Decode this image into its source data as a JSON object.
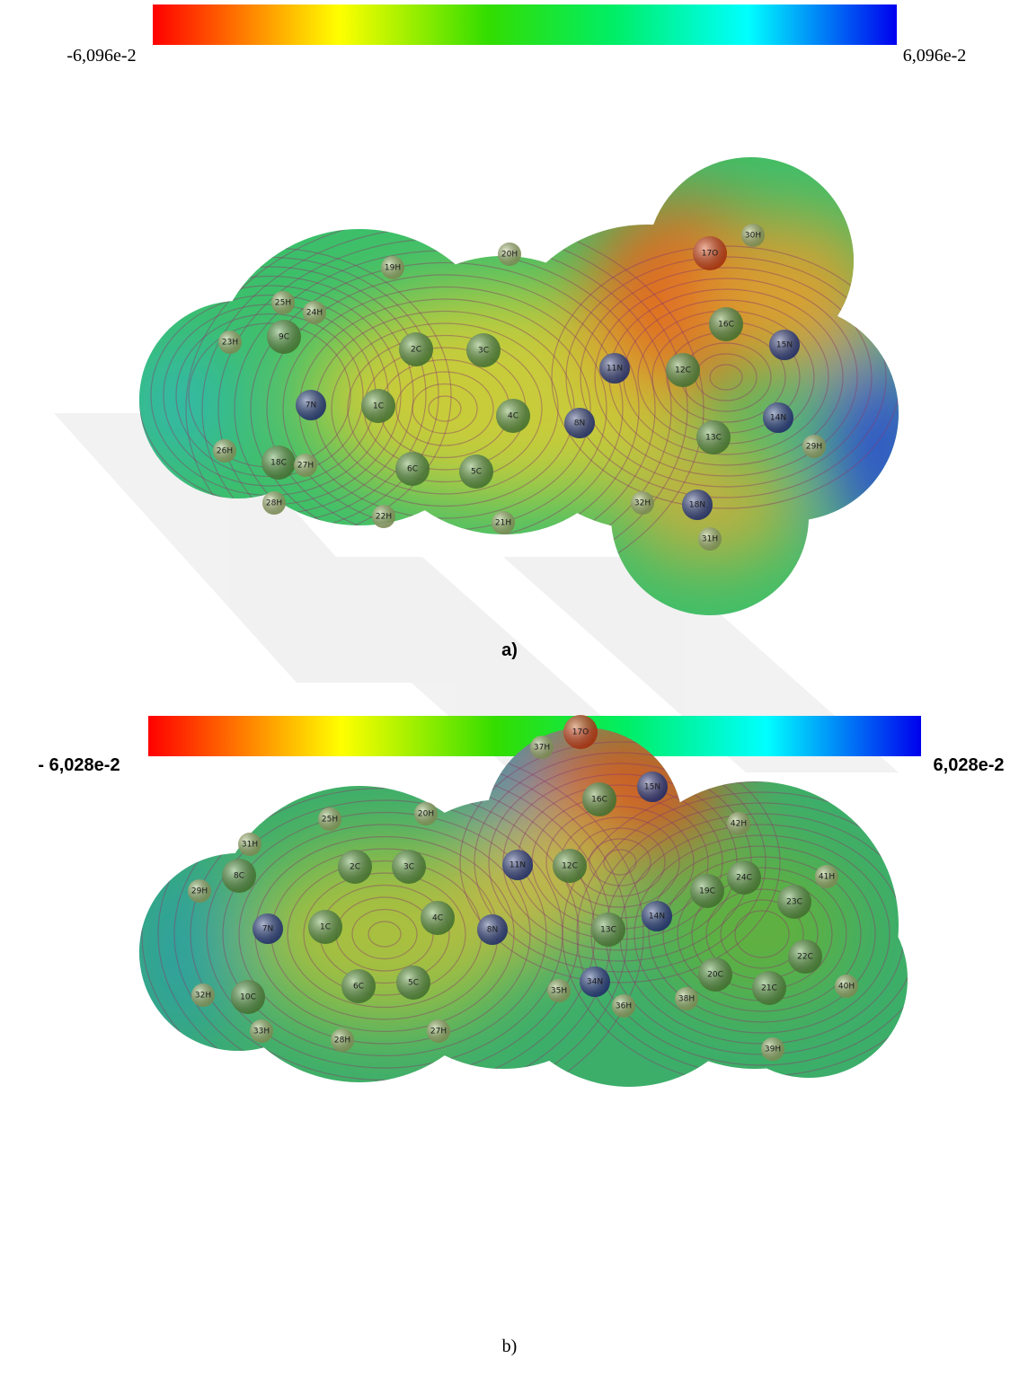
{
  "panels": [
    {
      "scale_min_label": "-6,096e-2",
      "scale_max_label": "6,096e-2",
      "caption": "a)",
      "atoms": [
        "19H",
        "20H",
        "25H",
        "24H",
        "23H",
        "9C",
        "2C",
        "3C",
        "16C",
        "15N",
        "17O",
        "30H",
        "11N",
        "12C",
        "7N",
        "1C",
        "4C",
        "8N",
        "13C",
        "14N",
        "29H",
        "26H",
        "18C",
        "27H",
        "6C",
        "5C",
        "28H",
        "22H",
        "21H",
        "32H",
        "18N",
        "31H"
      ]
    },
    {
      "scale_min_label": "- 6,028e-2",
      "scale_max_label": "6,028e-2",
      "caption": "b)",
      "atoms": [
        "37H",
        "17O",
        "16C",
        "15N",
        "25H",
        "20H",
        "42H",
        "31H",
        "8C",
        "2C",
        "3C",
        "11N",
        "12C",
        "24C",
        "41H",
        "29H",
        "19C",
        "14N",
        "23C",
        "1C",
        "7N",
        "4C",
        "8N",
        "13C",
        "20C",
        "22C",
        "32H",
        "10C",
        "6C",
        "5C",
        "35H",
        "34N",
        "36H",
        "38H",
        "21C",
        "40H",
        "33H",
        "28H",
        "27H",
        "39H"
      ]
    }
  ]
}
